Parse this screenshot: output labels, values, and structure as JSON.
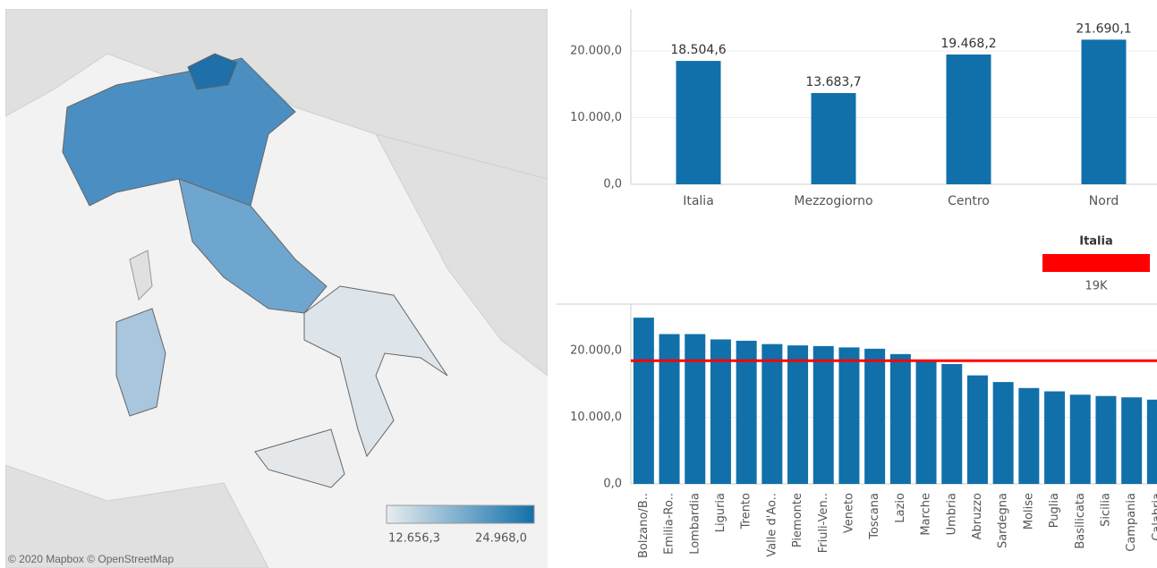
{
  "chart_data": [
    {
      "type": "bar",
      "categories": [
        "Italia",
        "Mezzogiorno",
        "Centro",
        "Nord"
      ],
      "values": [
        18504.6,
        13683.7,
        19468.2,
        21690.1
      ],
      "value_labels": [
        "18.504,6",
        "13.683,7",
        "19.468,2",
        "21.690,1"
      ],
      "color": "#1170aa",
      "ylim": [
        0,
        26300
      ],
      "yticks": [
        {
          "value": 0,
          "label": "0,0"
        },
        {
          "value": 10000,
          "label": "10.000,0"
        },
        {
          "value": 20000,
          "label": "20.000,0"
        }
      ],
      "grid": true
    },
    {
      "type": "bar",
      "categories": [
        "Bolzano/B..",
        "Emilia-Ro..",
        "Lombardia",
        "Liguria",
        "Trento",
        "Valle d'Ao..",
        "Piemonte",
        "Friuli-Ven..",
        "Veneto",
        "Toscana",
        "Lazio",
        "Marche",
        "Umbria",
        "Abruzzo",
        "Sardegna",
        "Molise",
        "Puglia",
        "Basilicata",
        "Sicilia",
        "Campania",
        "Calabria"
      ],
      "values": [
        24968,
        22500,
        22500,
        21700,
        21500,
        21000,
        20800,
        20700,
        20500,
        20300,
        19500,
        18600,
        18000,
        16300,
        15300,
        14400,
        13900,
        13400,
        13200,
        13000,
        12656.3
      ],
      "color": "#1170aa",
      "ylim": [
        0,
        27000
      ],
      "yticks": [
        {
          "value": 0,
          "label": "0,0"
        },
        {
          "value": 10000,
          "label": "10.000,0"
        },
        {
          "value": 20000,
          "label": "20.000,0"
        }
      ],
      "grid": true,
      "reference_line": {
        "name": "Italia",
        "value": 18504.6,
        "value_label": "19K",
        "color": "#ff0000"
      }
    }
  ],
  "map": {
    "attribution": "© 2020 Mapbox © OpenStreetMap",
    "legend": {
      "min": {
        "value": 12656.3,
        "label": "12.656,3"
      },
      "max": {
        "value": 24968,
        "label": "24.968,0"
      },
      "colors": [
        "#e8ecef",
        "#1170aa"
      ]
    }
  }
}
